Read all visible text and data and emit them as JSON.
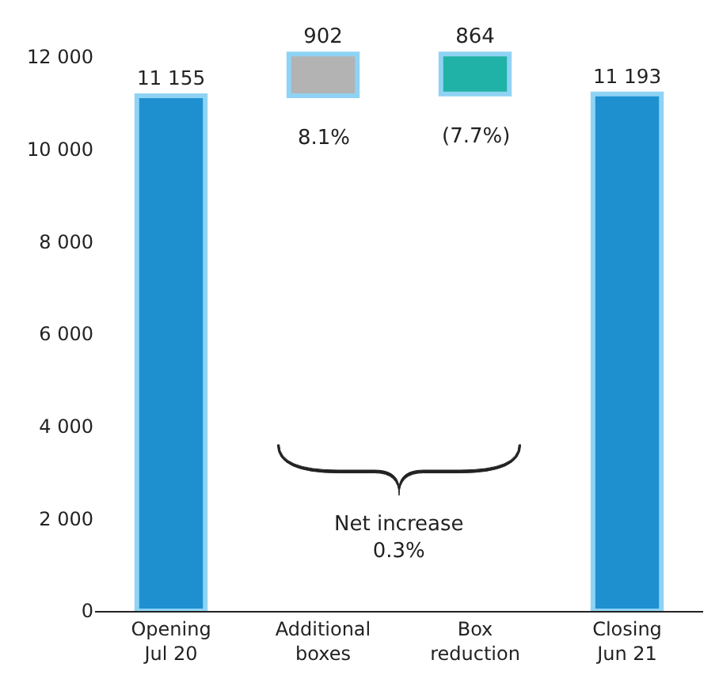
{
  "chart_data": {
    "type": "bar",
    "categories": [
      "Opening\nJul 20",
      "Additional\nboxes",
      "Box\nreduction",
      "Closing\nJun 21"
    ],
    "values": [
      11155,
      902,
      864,
      11193
    ],
    "base": [
      0,
      11155,
      11193,
      0
    ],
    "colors": [
      "#1e90d0",
      "#b3b3b3",
      "#20b2a6",
      "#1e90d0"
    ],
    "value_labels": [
      "11 155",
      "902",
      "864",
      "11 193"
    ],
    "ylim": [
      0,
      12200
    ],
    "yticks": [
      {
        "value": 0,
        "label": "0"
      },
      {
        "value": 2000,
        "label": "2 000"
      },
      {
        "value": 4000,
        "label": "4 000"
      },
      {
        "value": 6000,
        "label": "6 000"
      },
      {
        "value": 8000,
        "label": "8 000"
      },
      {
        "value": 10000,
        "label": "10 000"
      },
      {
        "value": 12000,
        "label": "12 000"
      }
    ],
    "annotations": [
      "8.1%",
      "(7.7%)",
      "Net increase\n0.3%"
    ],
    "legend": false
  }
}
